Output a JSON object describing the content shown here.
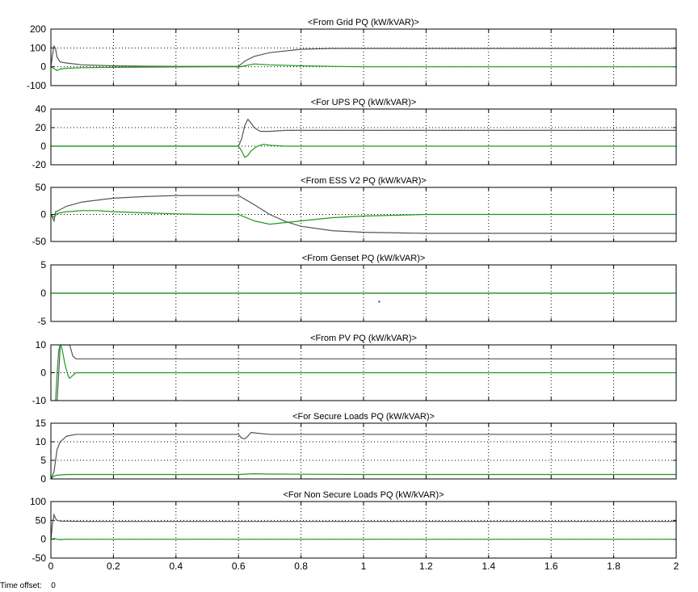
{
  "scope": {
    "time_offset_label": "Time offset:",
    "time_offset_value": "0"
  },
  "colors": {
    "background": "#ffffff",
    "axes_frame": "#000000",
    "grid": "#000000",
    "series_p": "#555555",
    "series_q": "#1a9a1a",
    "marker": "#3333aa"
  },
  "chart_data": [
    {
      "type": "line",
      "title": "<From Grid PQ (kW/kVAR)>",
      "xlim": [
        0,
        2
      ],
      "ylim": [
        -100,
        200
      ],
      "yticks": [
        200,
        100,
        0,
        -100
      ],
      "xticks": [
        0,
        0.2,
        0.4,
        0.6,
        0.8,
        1,
        1.2,
        1.4,
        1.6,
        1.8,
        2
      ],
      "show_xtick_labels": false,
      "grid": true,
      "series": [
        {
          "color": "#555555",
          "x": [
            0,
            0.005,
            0.01,
            0.015,
            0.02,
            0.03,
            0.05,
            0.1,
            0.2,
            0.3,
            0.4,
            0.5,
            0.59,
            0.6,
            0.62,
            0.65,
            0.7,
            0.8,
            0.9,
            1.0,
            1.1,
            1.2,
            1.5,
            2.0
          ],
          "y": [
            0,
            60,
            110,
            95,
            50,
            25,
            20,
            10,
            5,
            3,
            2,
            2,
            2,
            2,
            30,
            55,
            75,
            93,
            97,
            97,
            97,
            97,
            97,
            97
          ]
        },
        {
          "color": "#1a9a1a",
          "x": [
            0,
            0.01,
            0.02,
            0.03,
            0.05,
            0.1,
            0.2,
            0.5,
            0.59,
            0.6,
            0.62,
            0.65,
            0.7,
            0.8,
            0.9,
            1.0,
            1.5,
            2.0
          ],
          "y": [
            0,
            -10,
            -20,
            -12,
            -8,
            -5,
            -3,
            0,
            0,
            -2,
            5,
            15,
            10,
            5,
            2,
            0,
            0,
            0
          ]
        }
      ]
    },
    {
      "type": "line",
      "title": "<For UPS PQ (kW/kVAR)>",
      "xlim": [
        0,
        2
      ],
      "ylim": [
        -20,
        40
      ],
      "yticks": [
        40,
        20,
        0,
        -20
      ],
      "xticks": [
        0,
        0.2,
        0.4,
        0.6,
        0.8,
        1,
        1.2,
        1.4,
        1.6,
        1.8,
        2
      ],
      "show_xtick_labels": false,
      "grid": true,
      "series": [
        {
          "color": "#555555",
          "x": [
            0,
            0.6,
            0.61,
            0.62,
            0.63,
            0.64,
            0.65,
            0.67,
            0.7,
            0.75,
            0.8,
            1.0,
            1.5,
            2.0
          ],
          "y": [
            0,
            0,
            8,
            22,
            29,
            25,
            20,
            16,
            16,
            17,
            17,
            17,
            17,
            17
          ]
        },
        {
          "color": "#1a9a1a",
          "x": [
            0,
            0.6,
            0.61,
            0.62,
            0.63,
            0.64,
            0.66,
            0.68,
            0.7,
            0.75,
            0.8,
            1.0,
            2.0
          ],
          "y": [
            0,
            0,
            -5,
            -12,
            -10,
            -5,
            0,
            2,
            1,
            0,
            0,
            0,
            0
          ]
        }
      ]
    },
    {
      "type": "line",
      "title": "<From ESS V2 PQ (kW/kVAR)>",
      "xlim": [
        0,
        2
      ],
      "ylim": [
        -50,
        50
      ],
      "yticks": [
        50,
        0,
        -50
      ],
      "xticks": [
        0,
        0.2,
        0.4,
        0.6,
        0.8,
        1,
        1.2,
        1.4,
        1.6,
        1.8,
        2
      ],
      "show_xtick_labels": false,
      "grid": true,
      "series": [
        {
          "color": "#555555",
          "x": [
            0,
            0.01,
            0.015,
            0.02,
            0.05,
            0.1,
            0.2,
            0.3,
            0.4,
            0.5,
            0.6,
            0.65,
            0.7,
            0.75,
            0.8,
            0.9,
            1.0,
            1.2,
            1.5,
            2.0
          ],
          "y": [
            0,
            -12,
            5,
            6,
            15,
            23,
            30,
            33,
            35,
            35,
            35,
            18,
            0,
            -13,
            -22,
            -30,
            -33,
            -35,
            -35,
            -35
          ]
        },
        {
          "color": "#1a9a1a",
          "x": [
            0,
            0.01,
            0.02,
            0.05,
            0.1,
            0.15,
            0.2,
            0.3,
            0.4,
            0.5,
            0.6,
            0.65,
            0.7,
            0.8,
            0.9,
            1.0,
            1.2,
            1.5,
            2.0
          ],
          "y": [
            0,
            -5,
            2,
            5,
            7,
            7,
            5,
            3,
            1,
            0,
            0,
            -12,
            -18,
            -12,
            -6,
            -3,
            0,
            0,
            0
          ]
        }
      ]
    },
    {
      "type": "line",
      "title": "<From Genset PQ (kW/kVAR)>",
      "xlim": [
        0,
        2
      ],
      "ylim": [
        -5,
        5
      ],
      "yticks": [
        5,
        0,
        -5
      ],
      "xticks": [
        0,
        0.2,
        0.4,
        0.6,
        0.8,
        1,
        1.2,
        1.4,
        1.6,
        1.8,
        2
      ],
      "show_xtick_labels": false,
      "grid": true,
      "series": [
        {
          "color": "#555555",
          "x": [
            0,
            2
          ],
          "y": [
            0,
            0
          ]
        },
        {
          "color": "#1a9a1a",
          "x": [
            0,
            2
          ],
          "y": [
            0,
            0
          ]
        }
      ],
      "marker": {
        "x": 1.05,
        "y": -1.5
      }
    },
    {
      "type": "line",
      "title": "<From PV PQ (kW/kVAR)>",
      "xlim": [
        0,
        2
      ],
      "ylim": [
        -10,
        10
      ],
      "yticks": [
        10,
        0,
        -10
      ],
      "xticks": [
        0,
        0.2,
        0.4,
        0.6,
        0.8,
        1,
        1.2,
        1.4,
        1.6,
        1.8,
        2
      ],
      "show_xtick_labels": false,
      "grid": true,
      "series": [
        {
          "color": "#555555",
          "x": [
            0.02,
            0.025,
            0.03,
            0.04,
            0.05,
            0.06,
            0.07,
            0.08,
            0.1,
            0.2,
            0.5,
            1.0,
            2.0
          ],
          "y": [
            -10,
            0,
            10,
            10,
            10,
            10,
            6,
            5,
            5,
            5,
            5,
            5,
            5
          ]
        },
        {
          "color": "#1a9a1a",
          "x": [
            0.01,
            0.015,
            0.02,
            0.025,
            0.03,
            0.035,
            0.04,
            0.045,
            0.05,
            0.055,
            0.06,
            0.07,
            0.08,
            0.09,
            0.1,
            0.2,
            1.0,
            2.0
          ],
          "y": [
            -10,
            -10,
            0,
            8,
            10,
            9,
            6,
            3,
            1,
            -1,
            -2,
            -1,
            0,
            0,
            0,
            0,
            0,
            0
          ]
        }
      ]
    },
    {
      "type": "line",
      "title": "<For Secure Loads PQ (kW/kVAR)>",
      "xlim": [
        0,
        2
      ],
      "ylim": [
        0,
        15
      ],
      "yticks": [
        15,
        10,
        5,
        0
      ],
      "xticks": [
        0,
        0.2,
        0.4,
        0.6,
        0.8,
        1,
        1.2,
        1.4,
        1.6,
        1.8,
        2
      ],
      "show_xtick_labels": false,
      "grid": true,
      "series": [
        {
          "color": "#555555",
          "x": [
            0,
            0.01,
            0.015,
            0.02,
            0.03,
            0.05,
            0.08,
            0.1,
            0.2,
            0.6,
            0.61,
            0.62,
            0.63,
            0.64,
            0.66,
            0.7,
            0.8,
            1.0,
            1.5,
            2.0
          ],
          "y": [
            0,
            2,
            5,
            8,
            10,
            11.5,
            12,
            12,
            12,
            12,
            11,
            10.8,
            11.5,
            12.5,
            12.3,
            12,
            12,
            12,
            12,
            12
          ]
        },
        {
          "color": "#1a9a1a",
          "x": [
            0,
            0.01,
            0.02,
            0.05,
            0.1,
            0.2,
            0.6,
            0.65,
            0.7,
            1.0,
            2.0
          ],
          "y": [
            0,
            0.8,
            1,
            1.2,
            1.2,
            1.2,
            1.2,
            1.4,
            1.3,
            1.2,
            1.2
          ]
        }
      ]
    },
    {
      "type": "line",
      "title": "<For Non Secure Loads PQ (kW/kVAR)>",
      "xlim": [
        0,
        2
      ],
      "ylim": [
        -50,
        100
      ],
      "yticks": [
        100,
        50,
        0,
        -50
      ],
      "xticks": [
        0,
        0.2,
        0.4,
        0.6,
        0.8,
        1,
        1.2,
        1.4,
        1.6,
        1.8,
        2
      ],
      "xtick_labels": [
        "0",
        "0.2",
        "0.4",
        "0.6",
        "0.8",
        "1",
        "1.2",
        "1.4",
        "1.6",
        "1.8",
        "2"
      ],
      "show_xtick_labels": true,
      "grid": true,
      "series": [
        {
          "color": "#555555",
          "x": [
            0,
            0.005,
            0.01,
            0.015,
            0.02,
            0.03,
            0.05,
            0.1,
            0.5,
            1.0,
            2.0
          ],
          "y": [
            0,
            40,
            65,
            55,
            50,
            48,
            48,
            47,
            47,
            47,
            47
          ]
        },
        {
          "color": "#1a9a1a",
          "x": [
            0,
            0.01,
            0.02,
            0.03,
            0.05,
            0.1,
            1.0,
            2.0
          ],
          "y": [
            0,
            2,
            0,
            -1,
            0,
            0,
            0,
            0
          ]
        }
      ]
    }
  ]
}
